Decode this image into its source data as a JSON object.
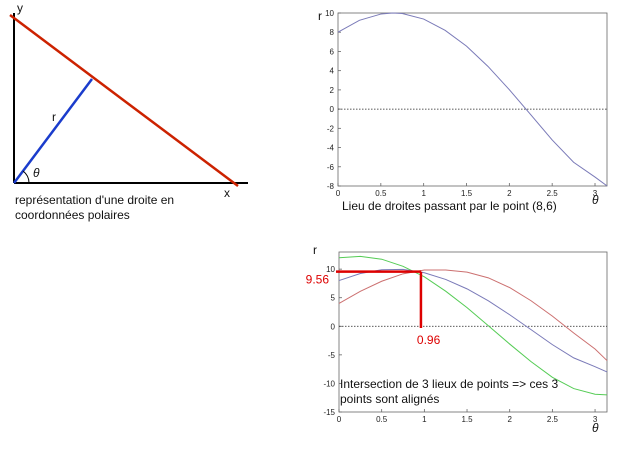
{
  "diagram": {
    "y_label": "y",
    "x_label": "x",
    "r_label": "r",
    "theta_label": "θ",
    "caption": "représentation d'une droite en coordonnées polaires",
    "colors": {
      "line": "#cc2200",
      "radius": "#1a3ccc",
      "axes": "#000000"
    }
  },
  "chart_data": [
    {
      "type": "line",
      "title": "",
      "caption": "Lieu de droites passant par le point (8,6)",
      "xlabel": "θ",
      "ylabel": "r",
      "xlim": [
        0,
        3.14
      ],
      "ylim": [
        -8,
        10
      ],
      "xticks": [
        0,
        0.5,
        1,
        1.5,
        2,
        2.5,
        3
      ],
      "xtick_labels": [
        "0",
        "0.5",
        "1",
        "1.5",
        "2",
        "2.5",
        "3"
      ],
      "yticks": [
        -8,
        -6,
        -4,
        -2,
        0,
        2,
        4,
        6,
        8,
        10
      ],
      "ytick_labels": [
        "-8",
        "-6",
        "-4",
        "-2",
        "0",
        "2",
        "4",
        "6",
        "8",
        "10"
      ],
      "zero_line": true,
      "x": [
        0,
        0.25,
        0.5,
        0.64,
        0.75,
        1,
        1.25,
        1.5,
        1.75,
        2,
        2.25,
        2.5,
        2.75,
        3,
        3.14
      ],
      "series": [
        {
          "values": [
            8.0,
            9.24,
            9.89,
            10.0,
            9.95,
            9.37,
            8.2,
            6.55,
            4.45,
            2.02,
            -0.58,
            -3.21,
            -5.53,
            -7.07,
            -7.99
          ],
          "color": "#7a7ab8"
        }
      ]
    },
    {
      "type": "line",
      "title": "",
      "caption": "Intersection de 3 lieux de points => ces 3 points sont alignés",
      "xlabel": "θ",
      "ylabel": "r",
      "xlim": [
        0,
        3.14
      ],
      "ylim": [
        -15,
        13
      ],
      "xticks": [
        0,
        0.5,
        1,
        1.5,
        2,
        2.5,
        3
      ],
      "xtick_labels": [
        "0",
        "0.5",
        "1",
        "1.5",
        "2",
        "2.5",
        "3"
      ],
      "yticks": [
        -15,
        -10,
        -5,
        0,
        5,
        10
      ],
      "ytick_labels": [
        "-15",
        "-10",
        "-5",
        "0",
        "5",
        "10"
      ],
      "zero_line": true,
      "x": [
        0,
        0.25,
        0.5,
        0.75,
        1,
        1.25,
        1.5,
        1.75,
        2,
        2.25,
        2.5,
        2.75,
        3,
        3.14
      ],
      "series": [
        {
          "values": [
            12.0,
            12.24,
            11.74,
            10.5,
            8.65,
            6.14,
            3.26,
            0.09,
            -3.11,
            -6.18,
            -8.93,
            -10.9,
            -11.9,
            -12.0
          ],
          "color": "#55cc55"
        },
        {
          "values": [
            8.0,
            9.24,
            9.89,
            9.95,
            9.37,
            8.2,
            6.55,
            4.45,
            2.02,
            -0.58,
            -3.21,
            -5.53,
            -7.07,
            -7.99
          ],
          "color": "#7a7ab8"
        },
        {
          "values": [
            4.0,
            6.12,
            7.88,
            9.18,
            9.85,
            9.84,
            9.48,
            8.48,
            6.77,
            4.47,
            1.78,
            -1.18,
            -3.98,
            -6.0
          ],
          "color": "#cc7070"
        }
      ],
      "annotations": [
        {
          "label": "9.56",
          "x": 0.96,
          "y": 9.56,
          "color": "#dd0000",
          "points_at": "y-axis"
        },
        {
          "label": "0.96",
          "x": 0.96,
          "y": 9.56,
          "color": "#dd0000",
          "points_at": "x-axis"
        }
      ]
    }
  ]
}
